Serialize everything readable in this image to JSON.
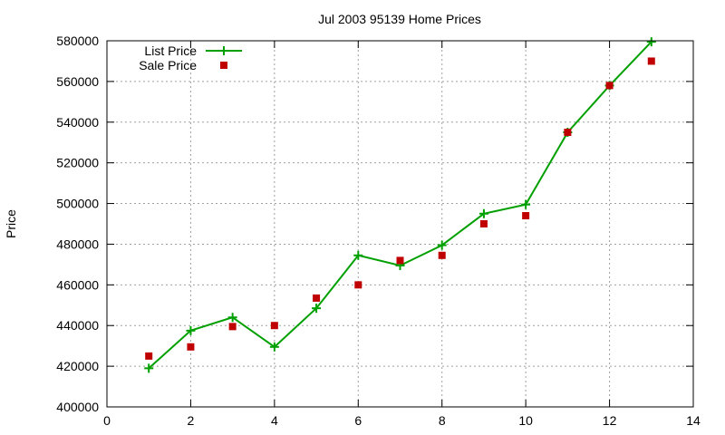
{
  "chart_data": {
    "type": "line",
    "title": "Jul 2003 95139 Home Prices",
    "xlabel": "",
    "ylabel": "Price",
    "xlim": [
      0,
      14
    ],
    "ylim": [
      400000,
      580000
    ],
    "x_ticks": [
      0,
      2,
      4,
      6,
      8,
      10,
      12,
      14
    ],
    "y_ticks": [
      400000,
      420000,
      440000,
      460000,
      480000,
      500000,
      520000,
      540000,
      560000,
      580000
    ],
    "grid": true,
    "legend_position": "top-left",
    "series": [
      {
        "name": "List Price",
        "style": "line+cross",
        "color": "#00a000",
        "x": [
          1,
          2,
          3,
          4,
          5,
          6,
          7,
          8,
          9,
          10,
          11,
          12,
          13
        ],
        "y": [
          419000,
          437500,
          444000,
          429500,
          448500,
          474500,
          469500,
          479500,
          495000,
          499500,
          535000,
          558000,
          579500
        ]
      },
      {
        "name": "Sale Price",
        "style": "square-points",
        "color": "#c00000",
        "x": [
          1,
          2,
          3,
          4,
          5,
          6,
          7,
          8,
          9,
          10,
          11,
          12,
          13
        ],
        "y": [
          425000,
          429500,
          439500,
          440000,
          453500,
          460000,
          472000,
          474500,
          490000,
          494000,
          535000,
          558000,
          570000
        ]
      }
    ]
  }
}
